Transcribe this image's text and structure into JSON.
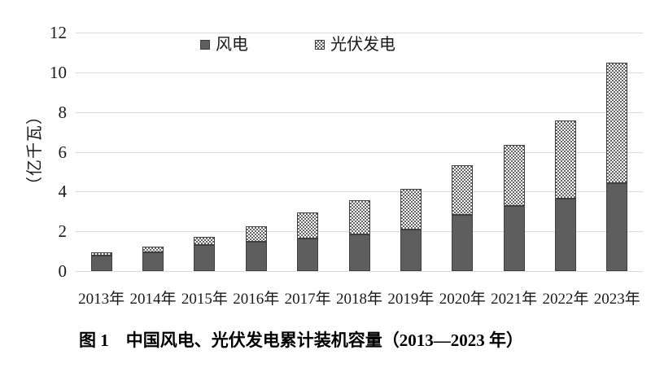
{
  "figure": {
    "y_axis_title": "（亿千瓦）",
    "caption": "图 1　中国风电、光伏发电累计装机容量（2013—2023 年）",
    "legend": {
      "wind_label": "风电",
      "solar_label": "光伏发电"
    },
    "colors": {
      "bar_solid_fill": "#5e5e5e",
      "bar_border": "#3f3f3f",
      "checker_dark": "#636363",
      "checker_light": "#ffffff",
      "gridline": "#dadada",
      "text": "#1a1a1a"
    }
  },
  "chart_data": {
    "type": "bar",
    "stacked": true,
    "title": "图 1　中国风电、光伏发电累计装机容量（2013—2023 年）",
    "categories": [
      "2013年",
      "2014年",
      "2015年",
      "2016年",
      "2017年",
      "2018年",
      "2019年",
      "2020年",
      "2021年",
      "2022年",
      "2023年"
    ],
    "series": [
      {
        "name": "风电",
        "style": "solid",
        "values": [
          0.77,
          0.96,
          1.31,
          1.49,
          1.64,
          1.84,
          2.1,
          2.81,
          3.28,
          3.65,
          4.41
        ]
      },
      {
        "name": "光伏发电",
        "style": "checkered",
        "values": [
          0.19,
          0.28,
          0.43,
          0.77,
          1.3,
          1.74,
          2.04,
          2.53,
          3.06,
          3.93,
          6.09
        ]
      }
    ],
    "totals": [
      0.96,
      1.24,
      1.74,
      2.26,
      2.94,
      3.58,
      4.14,
      5.34,
      6.34,
      7.58,
      10.5
    ],
    "xlabel": "",
    "ylabel": "（亿千瓦）",
    "ylim": [
      0,
      12
    ],
    "ytick_step": 2,
    "ytick_labels": [
      "0",
      "2",
      "4",
      "6",
      "8",
      "10",
      "12"
    ],
    "grid": true,
    "legend_position": "top-center"
  }
}
